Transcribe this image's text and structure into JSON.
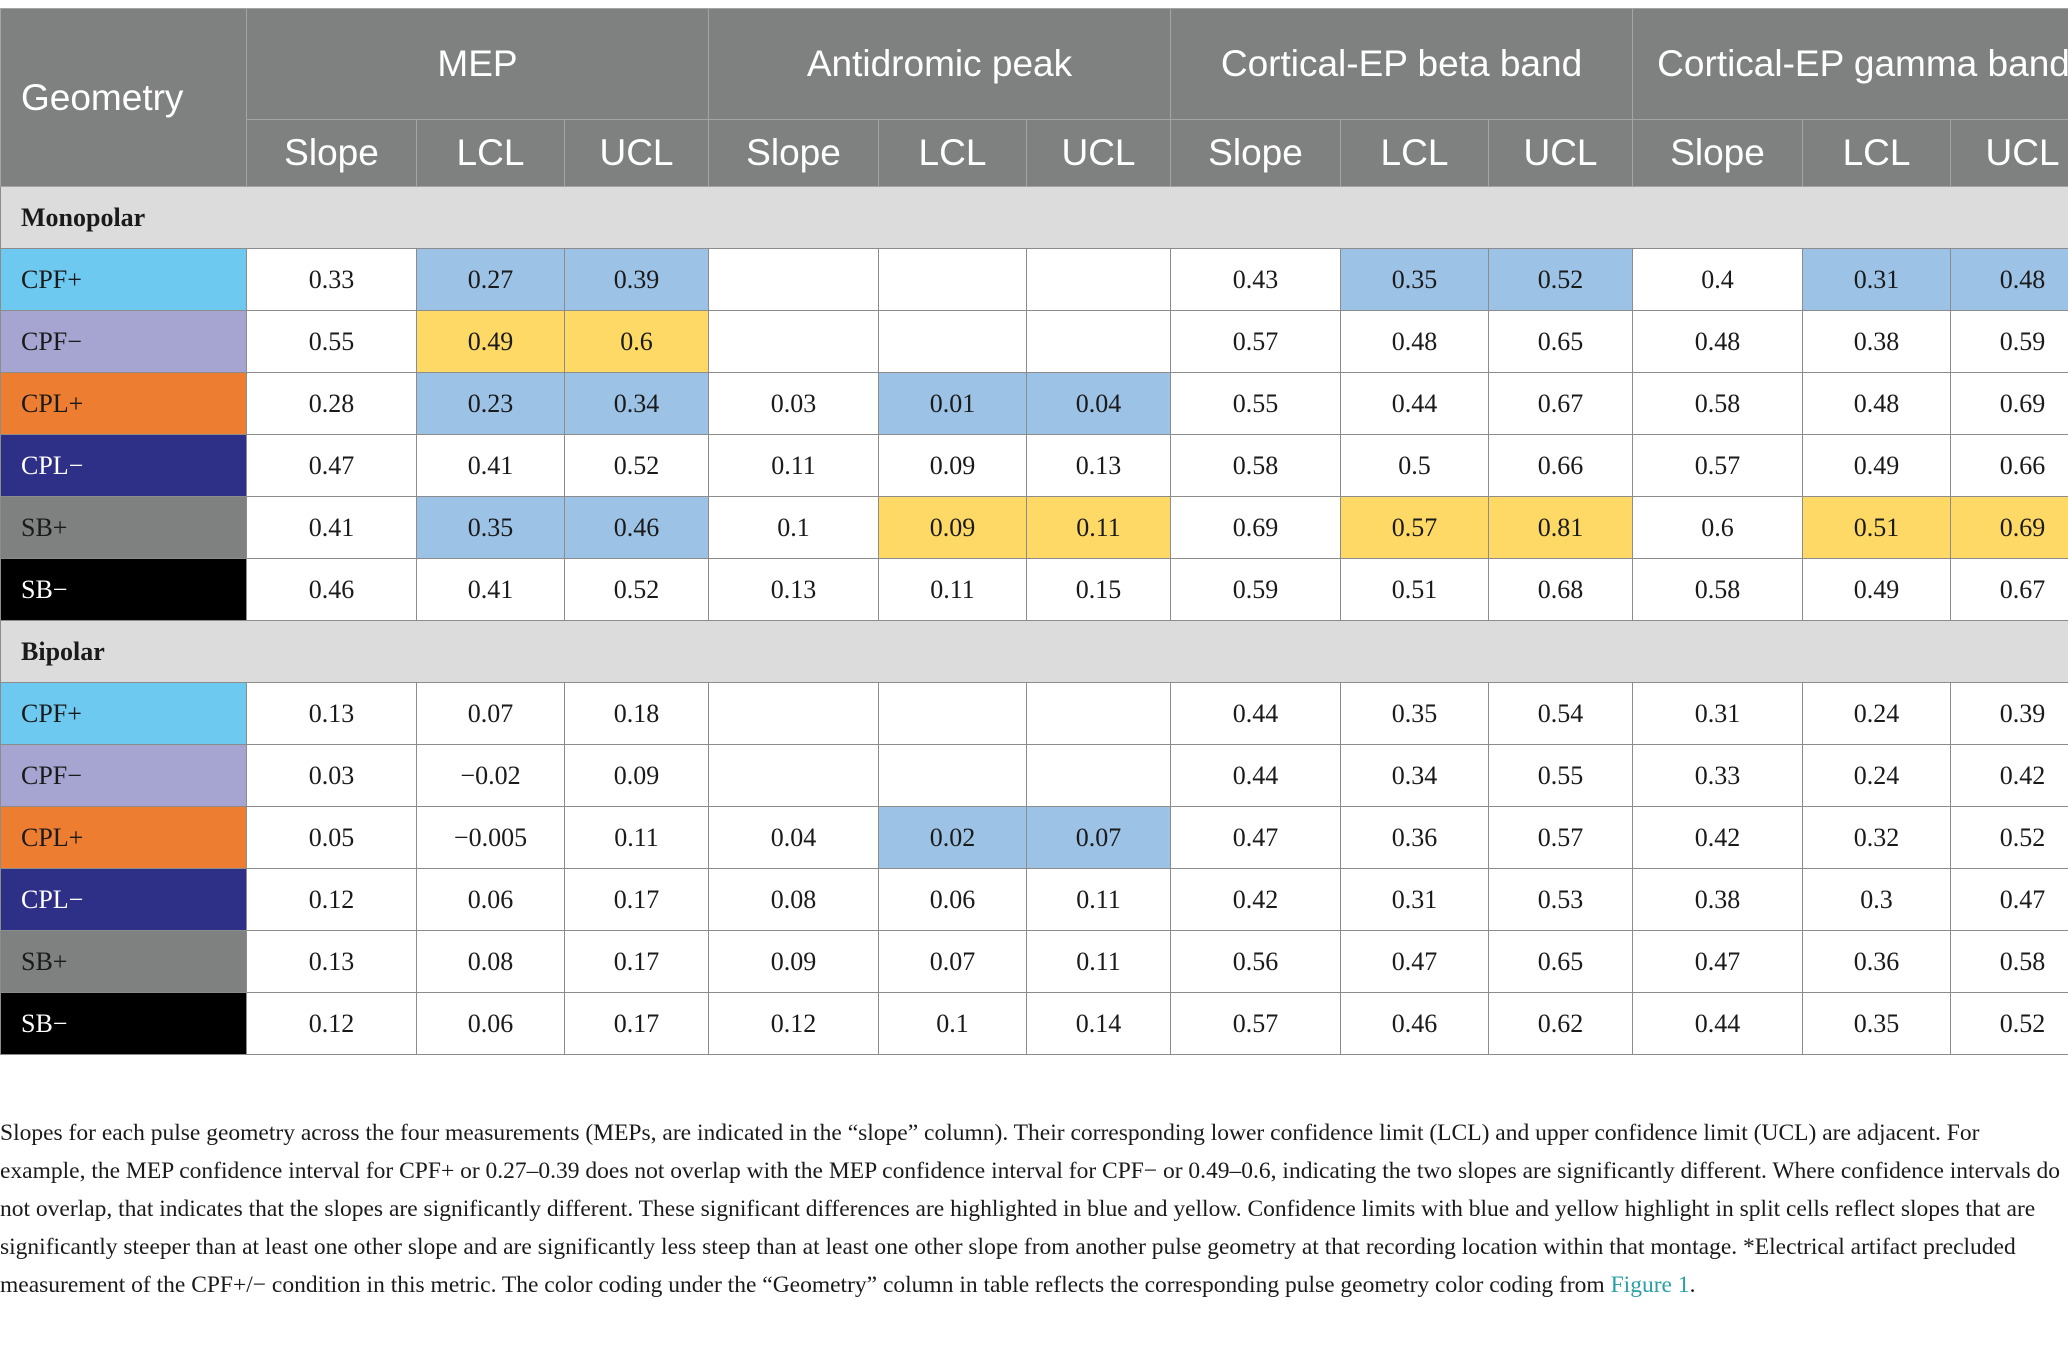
{
  "header": {
    "geometry": "Geometry",
    "groups": [
      "MEP",
      "Antidromic peak",
      "Cortical-EP beta band",
      "Cortical-EP gamma band"
    ],
    "subcols": [
      "Slope",
      "LCL",
      "UCL"
    ]
  },
  "colors": {
    "header_bg": "#7f8180",
    "highlight_blue": "#9cc2e5",
    "highlight_yellow": "#ffd966",
    "section_bg": "#dcdcdc",
    "CPF+": "#6ec9f0",
    "CPF−": "#a6a4d0",
    "CPL+": "#ec7d31",
    "CPL−": "#2e3087",
    "SB+": "#7f8180",
    "SB−": "#000000"
  },
  "sections": [
    {
      "title": "Monopolar",
      "rows": [
        {
          "label": "CPF+",
          "color": "#6ec9f0",
          "text": "#1a1a1a",
          "cells": [
            "0.33",
            "0.27",
            "0.39",
            "",
            "",
            "",
            "0.43",
            "0.35",
            "0.52",
            "0.4",
            "0.31",
            "0.48"
          ],
          "hl": [
            "",
            "b",
            "b",
            "",
            "",
            "",
            "",
            "b",
            "b",
            "",
            "b",
            "b"
          ]
        },
        {
          "label": "CPF−",
          "color": "#a6a4d0",
          "text": "#1a1a1a",
          "cells": [
            "0.55",
            "0.49",
            "0.6",
            "",
            "",
            "",
            "0.57",
            "0.48",
            "0.65",
            "0.48",
            "0.38",
            "0.59"
          ],
          "hl": [
            "",
            "y",
            "y",
            "",
            "",
            "",
            "",
            "",
            "",
            "",
            "",
            ""
          ]
        },
        {
          "label": "CPL+",
          "color": "#ec7d31",
          "text": "#1a1a1a",
          "cells": [
            "0.28",
            "0.23",
            "0.34",
            "0.03",
            "0.01",
            "0.04",
            "0.55",
            "0.44",
            "0.67",
            "0.58",
            "0.48",
            "0.69"
          ],
          "hl": [
            "",
            "b",
            "b",
            "",
            "b",
            "b",
            "",
            "",
            "",
            "",
            "",
            ""
          ]
        },
        {
          "label": "CPL−",
          "color": "#2e3087",
          "text": "#ffffff",
          "cells": [
            "0.47",
            "0.41",
            "0.52",
            "0.11",
            "0.09",
            "0.13",
            "0.58",
            "0.5",
            "0.66",
            "0.57",
            "0.49",
            "0.66"
          ],
          "hl": [
            "",
            "",
            "",
            "",
            "",
            "",
            "",
            "",
            "",
            "",
            "",
            ""
          ]
        },
        {
          "label": "SB+",
          "color": "#7f8180",
          "text": "#1a1a1a",
          "cells": [
            "0.41",
            "0.35",
            "0.46",
            "0.1",
            "0.09",
            "0.11",
            "0.69",
            "0.57",
            "0.81",
            "0.6",
            "0.51",
            "0.69"
          ],
          "hl": [
            "",
            "b",
            "b",
            "",
            "y",
            "y",
            "",
            "y",
            "y",
            "",
            "y",
            "y"
          ]
        },
        {
          "label": "SB−",
          "color": "#000000",
          "text": "#ffffff",
          "cells": [
            "0.46",
            "0.41",
            "0.52",
            "0.13",
            "0.11",
            "0.15",
            "0.59",
            "0.51",
            "0.68",
            "0.58",
            "0.49",
            "0.67"
          ],
          "hl": [
            "",
            "",
            "",
            "",
            "",
            "",
            "",
            "",
            "",
            "",
            "",
            ""
          ]
        }
      ]
    },
    {
      "title": "Bipolar",
      "rows": [
        {
          "label": "CPF+",
          "color": "#6ec9f0",
          "text": "#1a1a1a",
          "cells": [
            "0.13",
            "0.07",
            "0.18",
            "",
            "",
            "",
            "0.44",
            "0.35",
            "0.54",
            "0.31",
            "0.24",
            "0.39"
          ],
          "hl": [
            "",
            "",
            "",
            "",
            "",
            "",
            "",
            "",
            "",
            "",
            "",
            ""
          ]
        },
        {
          "label": "CPF−",
          "color": "#a6a4d0",
          "text": "#1a1a1a",
          "cells": [
            "0.03",
            "−0.02",
            "0.09",
            "",
            "",
            "",
            "0.44",
            "0.34",
            "0.55",
            "0.33",
            "0.24",
            "0.42"
          ],
          "hl": [
            "",
            "",
            "",
            "",
            "",
            "",
            "",
            "",
            "",
            "",
            "",
            ""
          ]
        },
        {
          "label": "CPL+",
          "color": "#ec7d31",
          "text": "#1a1a1a",
          "cells": [
            "0.05",
            "−0.005",
            "0.11",
            "0.04",
            "0.02",
            "0.07",
            "0.47",
            "0.36",
            "0.57",
            "0.42",
            "0.32",
            "0.52"
          ],
          "hl": [
            "",
            "",
            "",
            "",
            "b",
            "b",
            "",
            "",
            "",
            "",
            "",
            ""
          ]
        },
        {
          "label": "CPL−",
          "color": "#2e3087",
          "text": "#ffffff",
          "cells": [
            "0.12",
            "0.06",
            "0.17",
            "0.08",
            "0.06",
            "0.11",
            "0.42",
            "0.31",
            "0.53",
            "0.38",
            "0.3",
            "0.47"
          ],
          "hl": [
            "",
            "",
            "",
            "",
            "",
            "",
            "",
            "",
            "",
            "",
            "",
            ""
          ]
        },
        {
          "label": "SB+",
          "color": "#7f8180",
          "text": "#1a1a1a",
          "cells": [
            "0.13",
            "0.08",
            "0.17",
            "0.09",
            "0.07",
            "0.11",
            "0.56",
            "0.47",
            "0.65",
            "0.47",
            "0.36",
            "0.58"
          ],
          "hl": [
            "",
            "",
            "",
            "",
            "",
            "",
            "",
            "",
            "",
            "",
            "",
            ""
          ]
        },
        {
          "label": "SB−",
          "color": "#000000",
          "text": "#ffffff",
          "cells": [
            "0.12",
            "0.06",
            "0.17",
            "0.12",
            "0.1",
            "0.14",
            "0.57",
            "0.46",
            "0.62",
            "0.44",
            "0.35",
            "0.52"
          ],
          "hl": [
            "",
            "",
            "",
            "",
            "",
            "",
            "",
            "",
            "",
            "",
            "",
            ""
          ]
        }
      ]
    }
  ],
  "footnote": {
    "text": "Slopes for each pulse geometry across the four measurements (MEPs, are indicated in the “slope” column). Their corresponding lower confidence limit (LCL) and upper confidence limit (UCL) are adjacent. For example, the MEP confidence interval for CPF+ or 0.27–0.39 does not overlap with the MEP confidence interval for CPF− or 0.49–0.6, indicating the two slopes are significantly different. Where confidence intervals do not overlap, that indicates that the slopes are significantly different. These significant differences are highlighted in blue and yellow. Confidence limits with blue and yellow highlight in split cells reflect slopes that are significantly steeper than at least one other slope and are significantly less steep than at least one other slope from another pulse geometry at that recording location within that montage. *Electrical artifact precluded measurement of the CPF+/− condition in this metric. The color coding under the “Geometry” column in table reflects the corresponding pulse geometry color coding from ",
    "link": "Figure 1",
    "end": "."
  }
}
